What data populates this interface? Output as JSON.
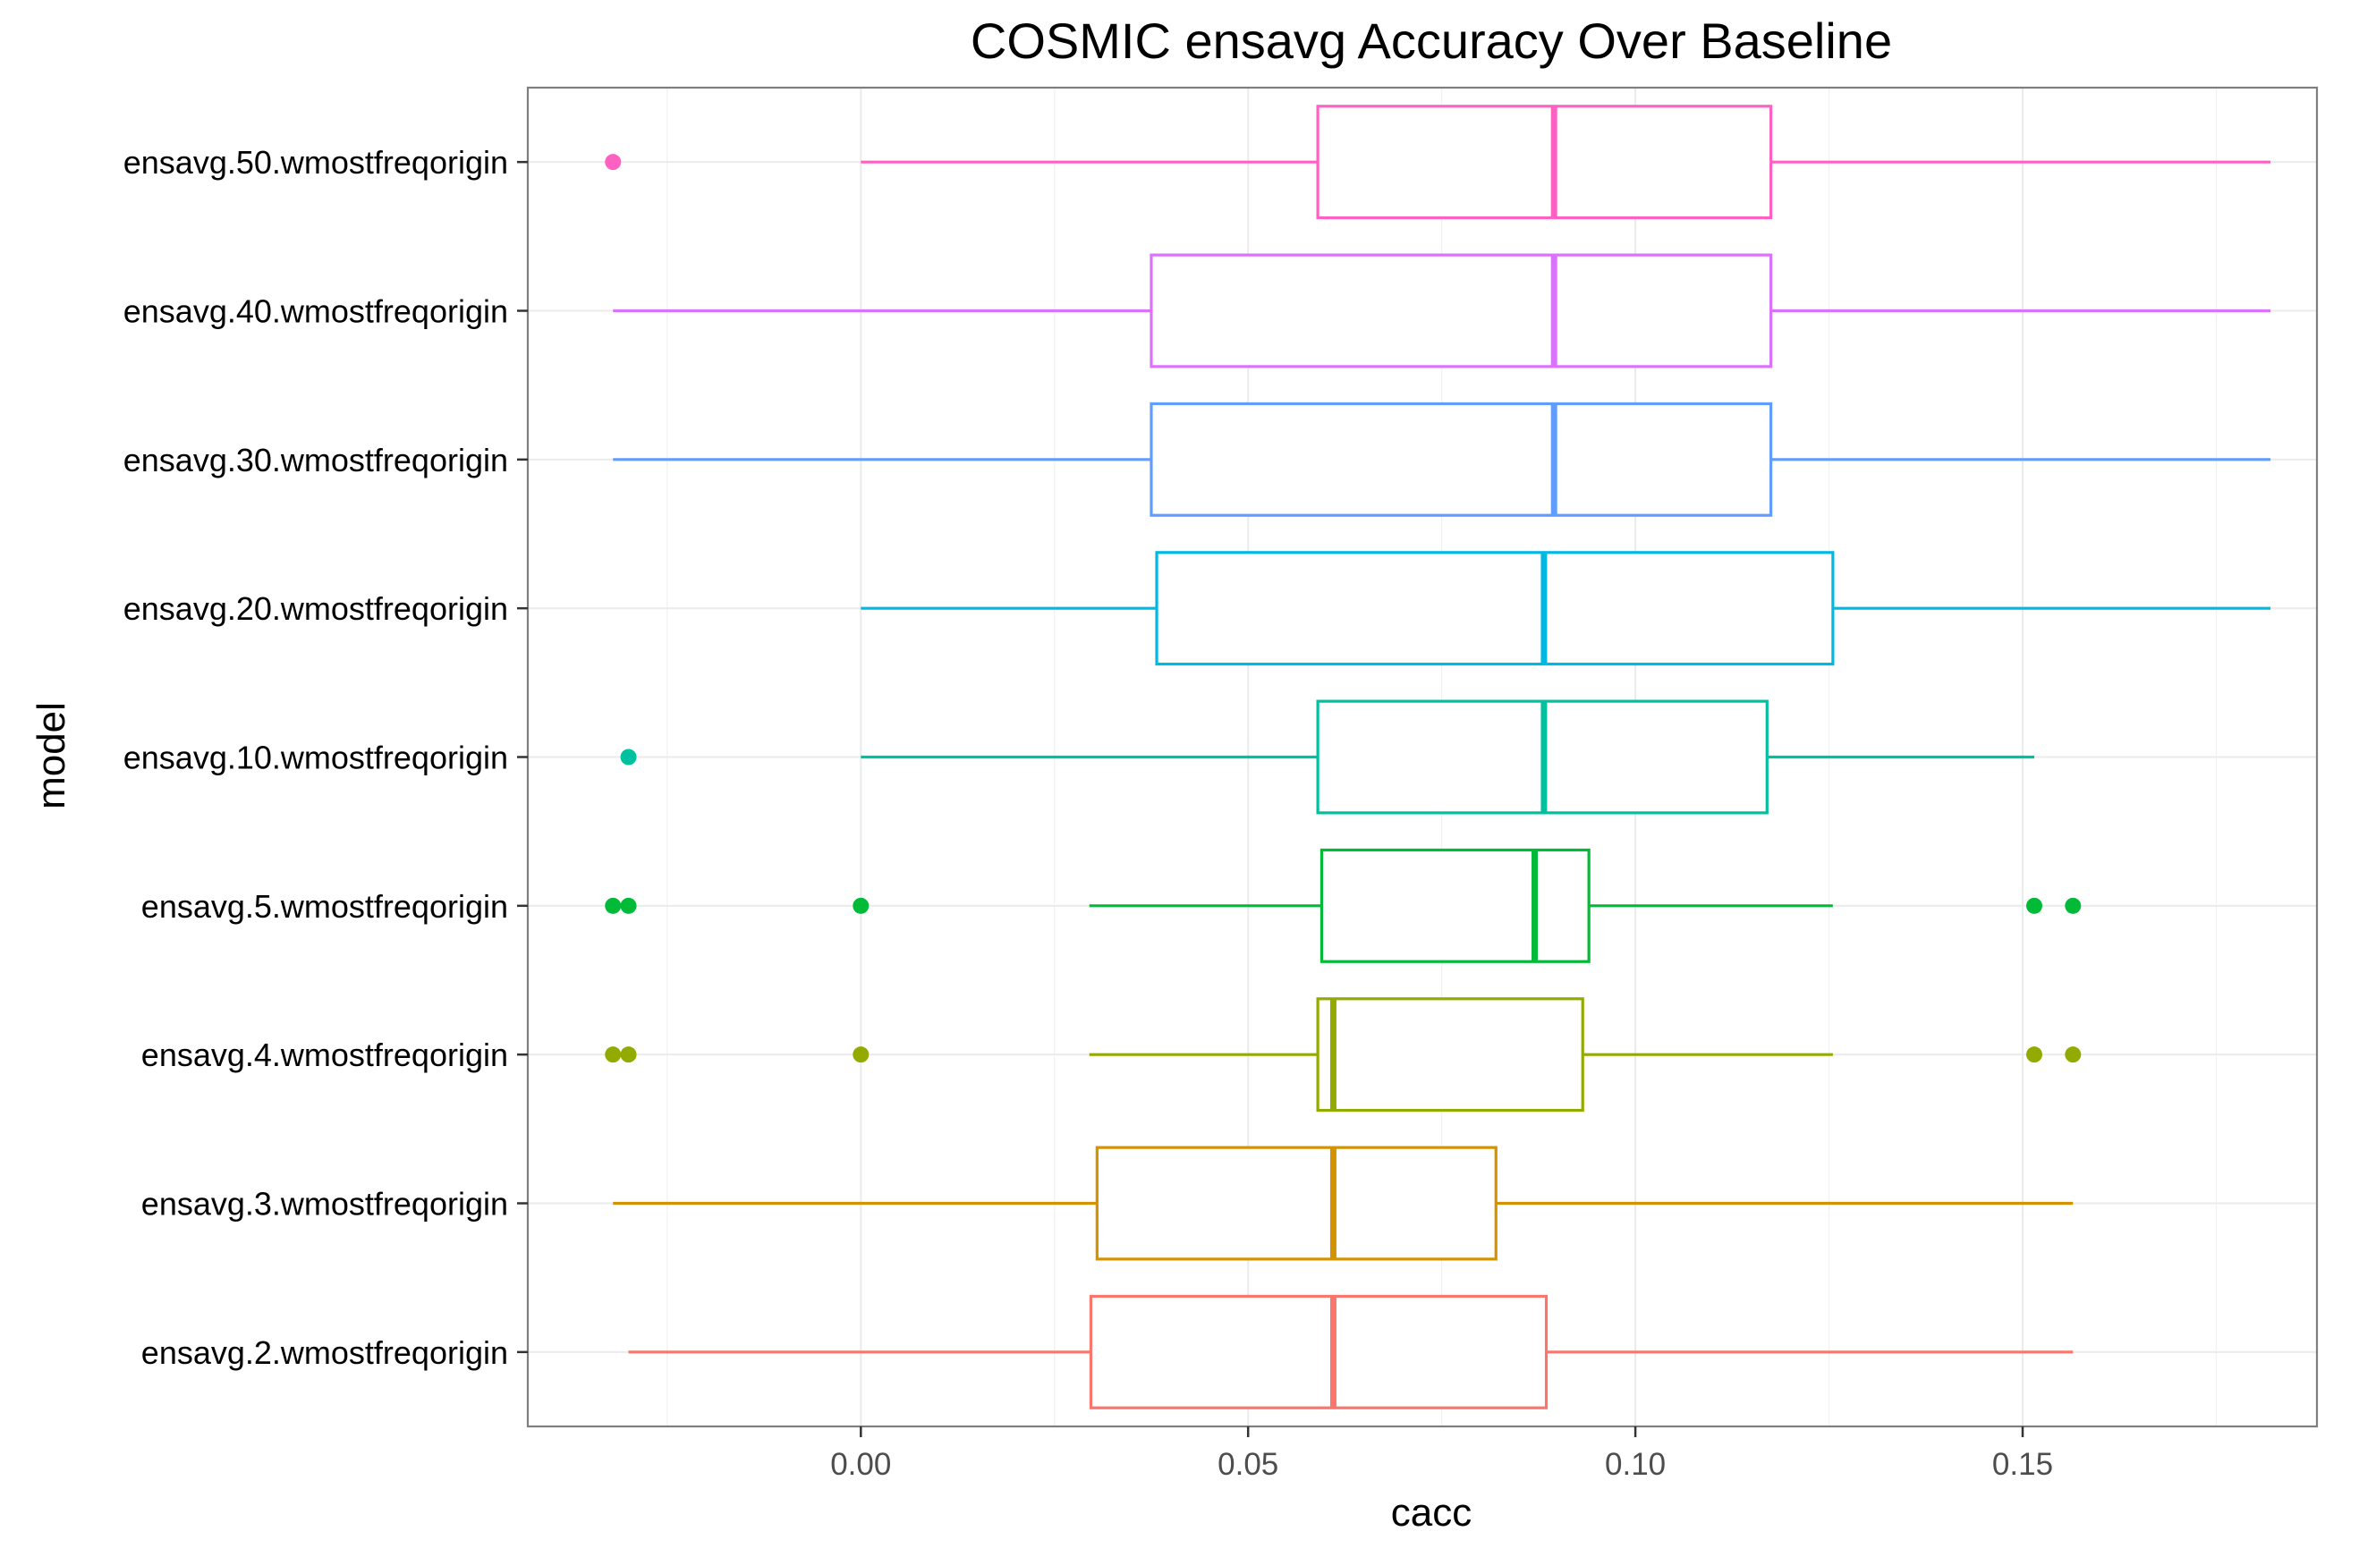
{
  "chart_data": {
    "type": "boxplot",
    "orientation": "horizontal",
    "title": "COSMIC ensavg Accuracy Over Baseline",
    "xlabel": "cacc",
    "ylabel": "model",
    "xlim": [
      -0.043,
      0.188
    ],
    "x_ticks": [
      0.0,
      0.05,
      0.1,
      0.15
    ],
    "x_tick_labels": [
      "0.00",
      "0.05",
      "0.10",
      "0.15"
    ],
    "grid": true,
    "legend": "none",
    "categories": [
      "ensavg.50.wmostfreqorigin",
      "ensavg.40.wmostfreqorigin",
      "ensavg.30.wmostfreqorigin",
      "ensavg.20.wmostfreqorigin",
      "ensavg.10.wmostfreqorigin",
      "ensavg.5.wmostfreqorigin",
      "ensavg.4.wmostfreqorigin",
      "ensavg.3.wmostfreqorigin",
      "ensavg.2.wmostfreqorigin"
    ],
    "series": [
      {
        "category": "ensavg.50.wmostfreqorigin",
        "color": "#FF61C3",
        "whisker_low": 0.0,
        "q1": 0.059,
        "median": 0.0895,
        "q3": 0.1175,
        "whisker_high": 0.182,
        "outliers": [
          -0.032
        ]
      },
      {
        "category": "ensavg.40.wmostfreqorigin",
        "color": "#DB72FB",
        "whisker_low": -0.032,
        "q1": 0.0375,
        "median": 0.0895,
        "q3": 0.1175,
        "whisker_high": 0.182,
        "outliers": []
      },
      {
        "category": "ensavg.30.wmostfreqorigin",
        "color": "#619CFF",
        "whisker_low": -0.032,
        "q1": 0.0375,
        "median": 0.0895,
        "q3": 0.1175,
        "whisker_high": 0.182,
        "outliers": []
      },
      {
        "category": "ensavg.20.wmostfreqorigin",
        "color": "#00B9E3",
        "whisker_low": 0.0,
        "q1": 0.0382,
        "median": 0.0882,
        "q3": 0.1255,
        "whisker_high": 0.182,
        "outliers": []
      },
      {
        "category": "ensavg.10.wmostfreqorigin",
        "color": "#00C19F",
        "whisker_low": 0.0,
        "q1": 0.059,
        "median": 0.0882,
        "q3": 0.117,
        "whisker_high": 0.1515,
        "outliers": [
          -0.03
        ]
      },
      {
        "category": "ensavg.5.wmostfreqorigin",
        "color": "#00BA38",
        "whisker_low": 0.0295,
        "q1": 0.0595,
        "median": 0.087,
        "q3": 0.094,
        "whisker_high": 0.1255,
        "outliers": [
          -0.032,
          -0.03,
          0.0,
          0.1515,
          0.1565
        ]
      },
      {
        "category": "ensavg.4.wmostfreqorigin",
        "color": "#93AA00",
        "whisker_low": 0.0295,
        "q1": 0.059,
        "median": 0.061,
        "q3": 0.0932,
        "whisker_high": 0.1255,
        "outliers": [
          -0.032,
          -0.03,
          0.0,
          0.1515,
          0.1565
        ]
      },
      {
        "category": "ensavg.3.wmostfreqorigin",
        "color": "#D39200",
        "whisker_low": -0.032,
        "q1": 0.0305,
        "median": 0.061,
        "q3": 0.082,
        "whisker_high": 0.1565,
        "outliers": []
      },
      {
        "category": "ensavg.2.wmostfreqorigin",
        "color": "#F8766D",
        "whisker_low": -0.03,
        "q1": 0.0297,
        "median": 0.061,
        "q3": 0.0885,
        "whisker_high": 0.1565,
        "outliers": []
      }
    ]
  }
}
